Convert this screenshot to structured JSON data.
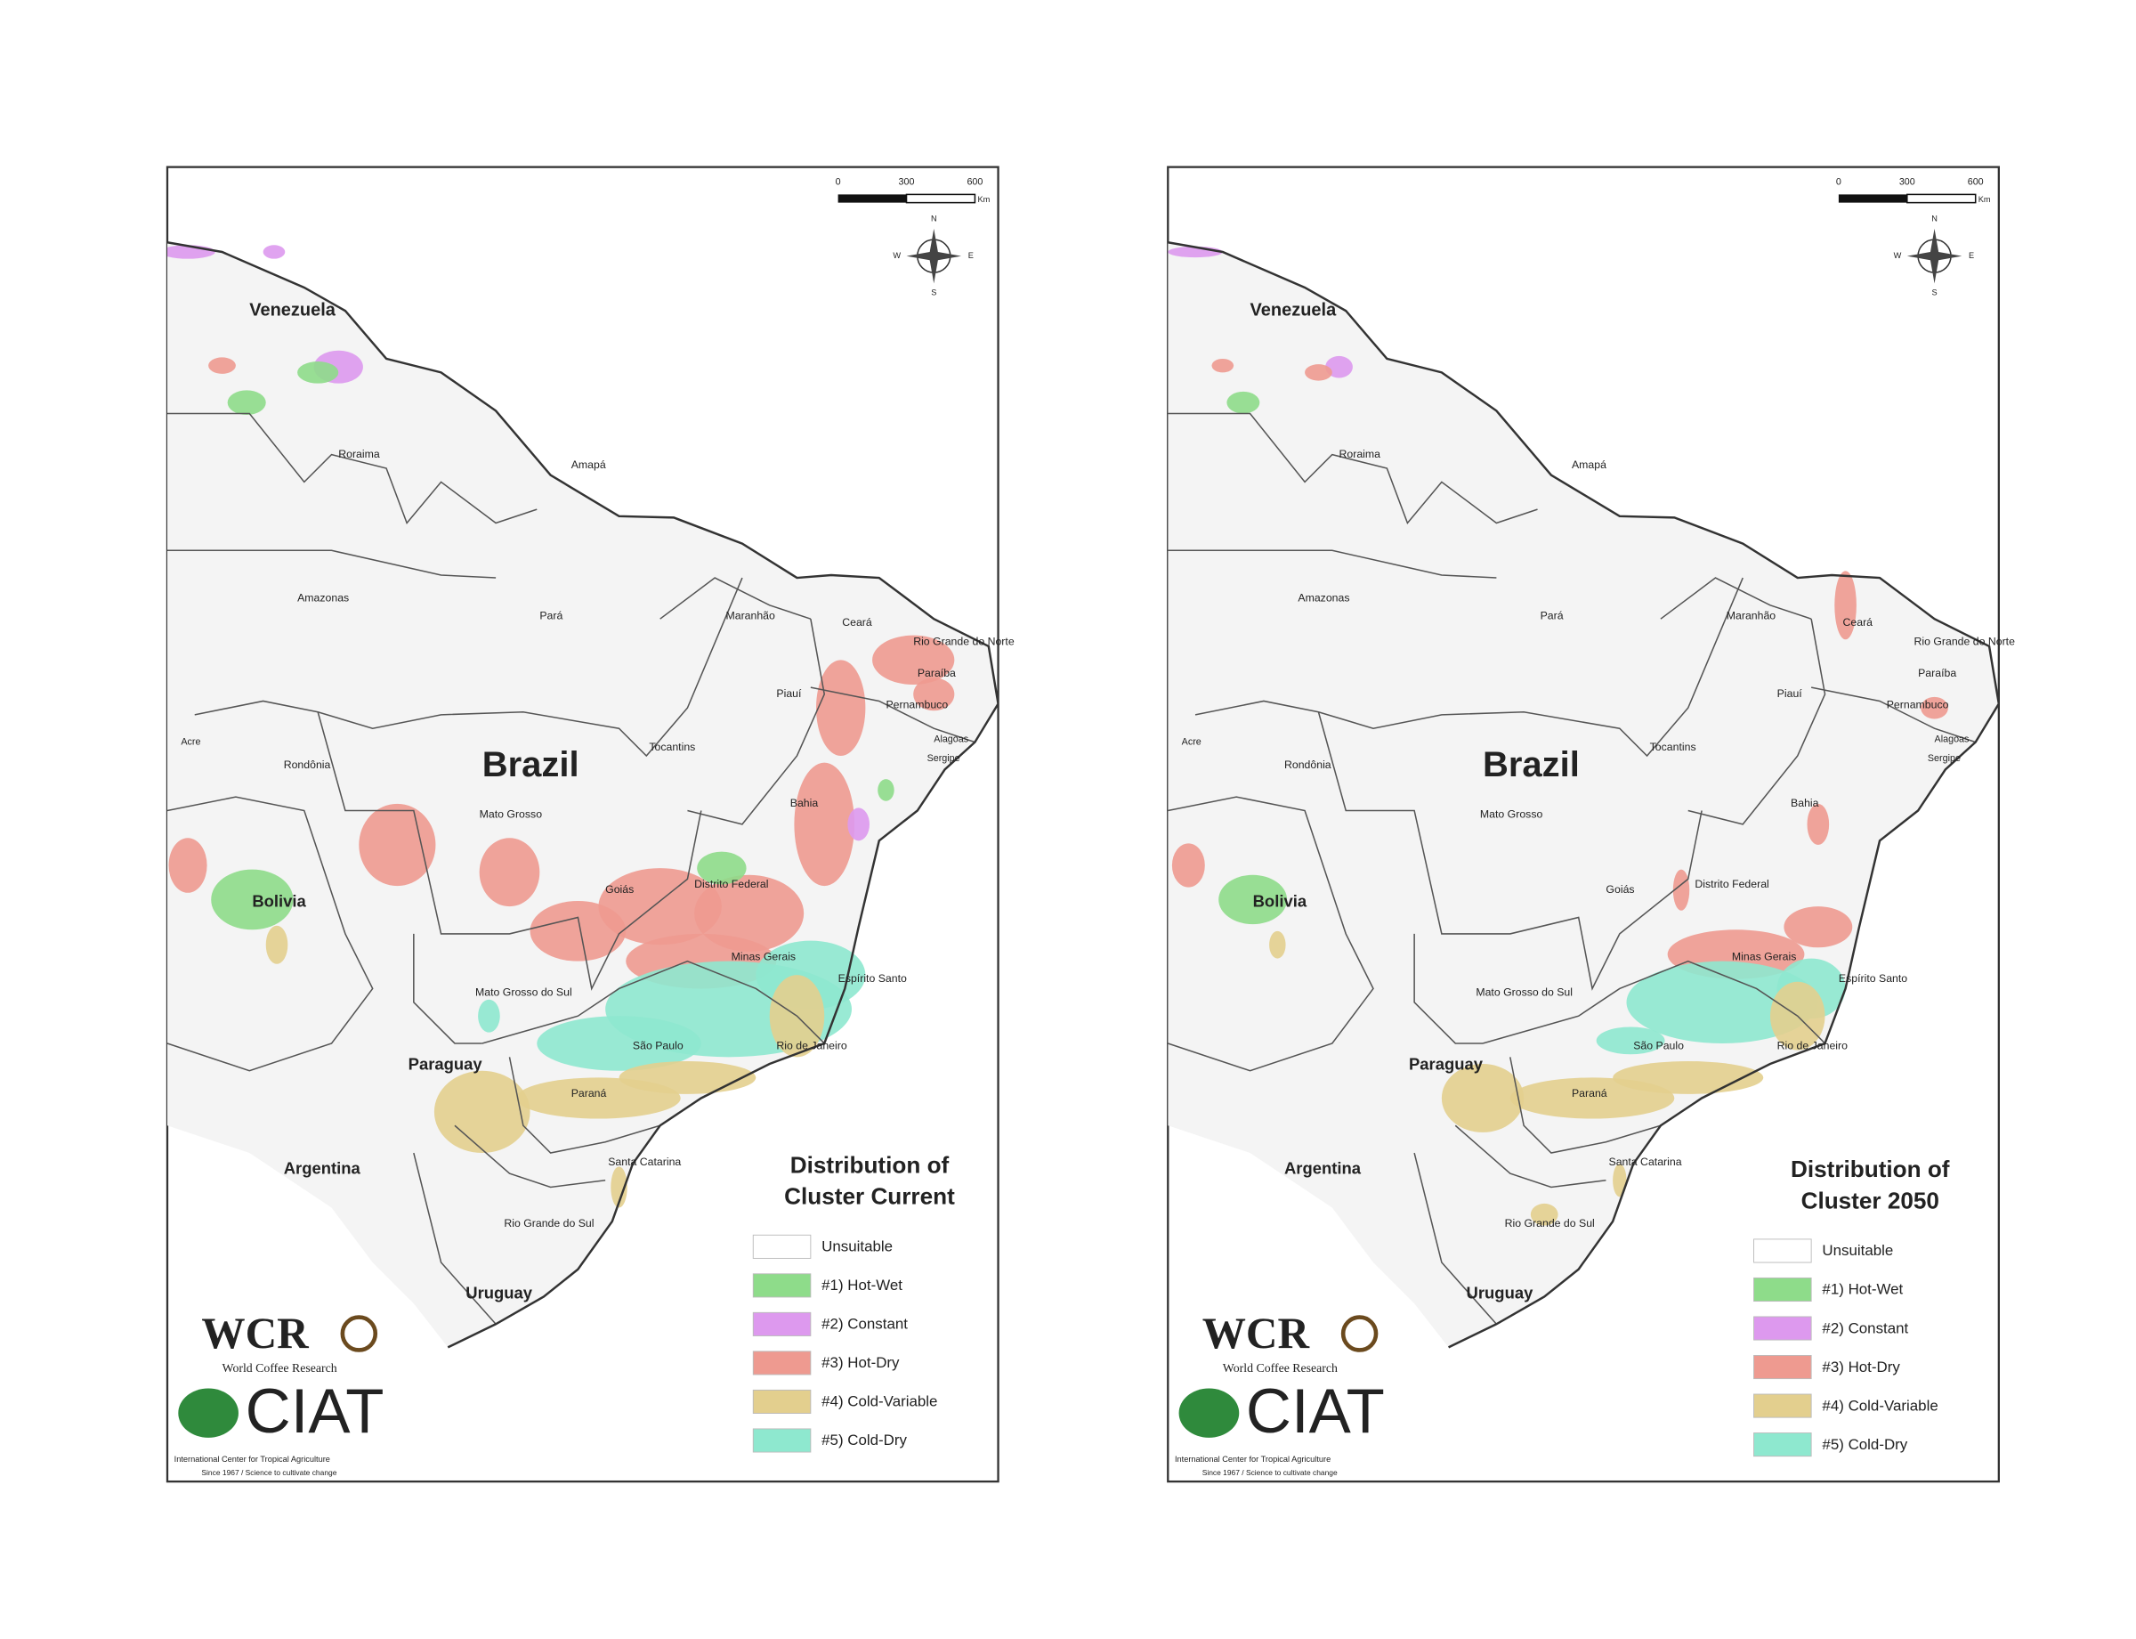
{
  "panels": [
    {
      "title": [
        "Distribution of",
        "Cluster Current"
      ],
      "place_labels": [
        "Venezuela",
        "Roraima",
        "Amapá",
        "Amazonas",
        "Pará",
        "Maranhão",
        "Ceará",
        "Rio Grande do Norte",
        "Paraíba",
        "Piauí",
        "Pernambuco",
        "Alagoas",
        "Sergipe",
        "Acre",
        "Rondônia",
        "Brazil",
        "Tocantins",
        "Bahia",
        "Mato Grosso",
        "Bolivia",
        "Goiás",
        "Distrito Federal",
        "Minas Gerais",
        "Espírito Santo",
        "Mato Grosso do Sul",
        "São Paulo",
        "Rio de Janeiro",
        "Paraguay",
        "Paraná",
        "Argentina",
        "Santa Catarina",
        "Rio Grande do Sul",
        "Uruguay"
      ],
      "legend": [
        {
          "label": "Unsuitable",
          "color": "#ffffff"
        },
        {
          "label": "#1) Hot-Wet",
          "color": "#8edc8a"
        },
        {
          "label": "#2) Constant",
          "color": "#dd99ee"
        },
        {
          "label": "#3) Hot-Dry",
          "color": "#ee9a90"
        },
        {
          "label": "#4) Cold-Variable",
          "color": "#e3cf8e"
        },
        {
          "label": "#5) Cold-Dry",
          "color": "#8ee8cf"
        }
      ],
      "scale": {
        "ticks": [
          "0",
          "300",
          "600"
        ],
        "unit": "Km"
      },
      "compass": [
        "N",
        "E",
        "S",
        "W"
      ],
      "logos": {
        "wcr": "WCR",
        "wcr_name": "World Coffee Research",
        "ciat": "CIAT",
        "ciat_name": "International Center for Tropical Agriculture",
        "ciat_tagline": "Since 1967 / Science to cultivate change"
      }
    },
    {
      "title": [
        "Distribution of",
        "Cluster 2050"
      ],
      "place_labels": [
        "Venezuela",
        "Roraima",
        "Amapá",
        "Amazonas",
        "Pará",
        "Maranhão",
        "Ceará",
        "Rio Grande do Norte",
        "Paraíba",
        "Piauí",
        "Pernambuco",
        "Alagoas",
        "Sergipe",
        "Acre",
        "Rondônia",
        "Brazil",
        "Tocantins",
        "Bahia",
        "Mato Grosso",
        "Bolivia",
        "Goiás",
        "Distrito Federal",
        "Minas Gerais",
        "Espírito Santo",
        "Mato Grosso do Sul",
        "São Paulo",
        "Rio de Janeiro",
        "Paraguay",
        "Paraná",
        "Argentina",
        "Santa Catarina",
        "Rio Grande do Sul",
        "Uruguay"
      ],
      "legend": [
        {
          "label": "Unsuitable",
          "color": "#ffffff"
        },
        {
          "label": "#1) Hot-Wet",
          "color": "#8edc8a"
        },
        {
          "label": "#2) Constant",
          "color": "#dd99ee"
        },
        {
          "label": "#3) Hot-Dry",
          "color": "#ee9a90"
        },
        {
          "label": "#4) Cold-Variable",
          "color": "#e3cf8e"
        },
        {
          "label": "#5) Cold-Dry",
          "color": "#8ee8cf"
        }
      ],
      "scale": {
        "ticks": [
          "0",
          "300",
          "600"
        ],
        "unit": "Km"
      },
      "compass": [
        "N",
        "E",
        "S",
        "W"
      ],
      "logos": {
        "wcr": "WCR",
        "wcr_name": "World Coffee Research",
        "ciat": "CIAT",
        "ciat_name": "International Center for Tropical Agriculture",
        "ciat_tagline": "Since 1967 / Science to cultivate change"
      }
    }
  ]
}
